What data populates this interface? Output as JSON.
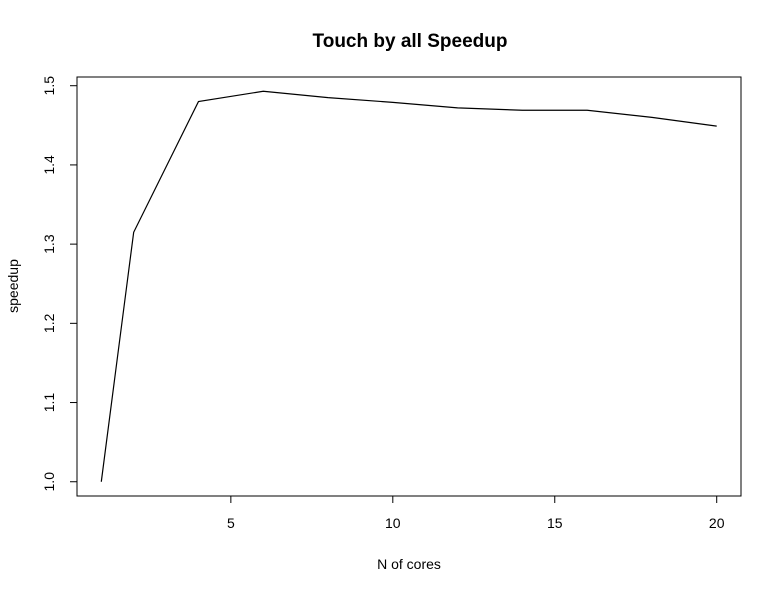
{
  "chart_data": {
    "type": "line",
    "title": "Touch by all Speedup",
    "xlabel": "N of cores",
    "ylabel": "speedup",
    "x": [
      1,
      2,
      4,
      6,
      8,
      10,
      12,
      14,
      16,
      18,
      20
    ],
    "series": [
      {
        "values": [
          1.0,
          1.315,
          1.48,
          1.493,
          1.485,
          1.479,
          1.472,
          1.469,
          1.469,
          1.46,
          1.449
        ],
        "color": "#000000"
      }
    ],
    "xlim": [
      0.25,
      20.75
    ],
    "ylim": [
      0.982,
      1.511
    ],
    "xticks": [
      5,
      10,
      15,
      20
    ],
    "yticks": [
      1.0,
      1.1,
      1.2,
      1.3,
      1.4,
      1.5
    ],
    "xtick_labels": [
      "5",
      "10",
      "15",
      "20"
    ],
    "ytick_labels": [
      "1.0",
      "1.1",
      "1.2",
      "1.3",
      "1.4",
      "1.5"
    ],
    "grid": false,
    "legend": "none"
  }
}
